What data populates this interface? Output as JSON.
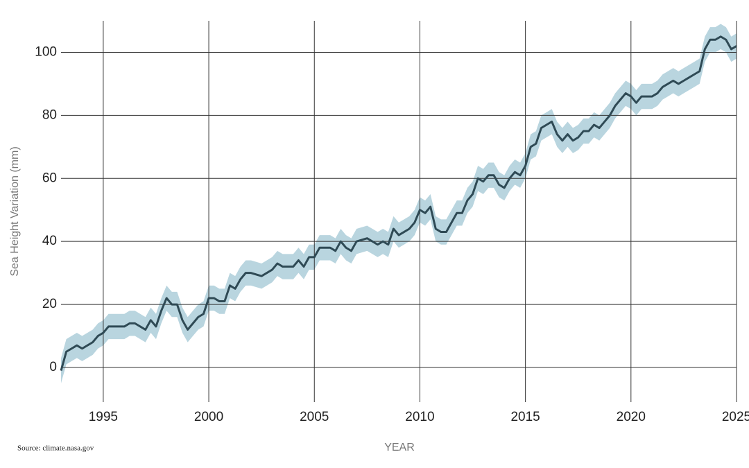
{
  "chart_data": {
    "type": "line",
    "y_label": "Sea Height Variation (mm)",
    "x_label": "YEAR",
    "source": "Source: climate.nasa.gov",
    "x": [
      1993.0,
      1993.25,
      1993.5,
      1993.75,
      1994.0,
      1994.5,
      1994.75,
      1995.0,
      1995.25,
      1995.5,
      1996.0,
      1996.25,
      1996.5,
      1997.0,
      1997.25,
      1997.5,
      1997.75,
      1998.0,
      1998.25,
      1998.5,
      1998.75,
      1999.0,
      1999.25,
      1999.5,
      1999.75,
      2000.0,
      2000.25,
      2000.5,
      2000.75,
      2001.0,
      2001.25,
      2001.5,
      2001.75,
      2002.0,
      2002.5,
      2003.0,
      2003.25,
      2003.5,
      2004.0,
      2004.25,
      2004.5,
      2004.75,
      2005.0,
      2005.25,
      2005.5,
      2005.75,
      2006.0,
      2006.25,
      2006.5,
      2006.75,
      2007.0,
      2007.5,
      2008.0,
      2008.25,
      2008.5,
      2008.75,
      2009.0,
      2009.25,
      2009.5,
      2009.75,
      2010.0,
      2010.25,
      2010.5,
      2010.75,
      2011.0,
      2011.25,
      2011.5,
      2011.75,
      2012.0,
      2012.25,
      2012.5,
      2012.75,
      2013.0,
      2013.25,
      2013.5,
      2013.75,
      2014.0,
      2014.25,
      2014.5,
      2014.75,
      2015.0,
      2015.25,
      2015.5,
      2015.75,
      2016.0,
      2016.25,
      2016.5,
      2016.75,
      2017.0,
      2017.25,
      2017.5,
      2017.75,
      2018.0,
      2018.25,
      2018.5,
      2018.75,
      2019.0,
      2019.25,
      2019.5,
      2019.75,
      2020.0,
      2020.25,
      2020.5,
      2020.75,
      2021.0,
      2021.25,
      2021.5,
      2021.75,
      2022.0,
      2022.25,
      2022.5,
      2022.75,
      2023.0,
      2023.25,
      2023.5,
      2023.75,
      2024.0,
      2024.25,
      2024.5,
      2024.75,
      2025.0
    ],
    "series": [
      {
        "color": "#2f4a55",
        "band_color": "#b9d5df",
        "values": [
          -1,
          5,
          6,
          7,
          6,
          8,
          10,
          11,
          13,
          13,
          13,
          14,
          14,
          12,
          15,
          13,
          18,
          22,
          20,
          20,
          15,
          12,
          14,
          16,
          17,
          22,
          22,
          21,
          21,
          26,
          25,
          28,
          30,
          30,
          29,
          31,
          33,
          32,
          32,
          34,
          32,
          35,
          35,
          38,
          38,
          38,
          37,
          40,
          38,
          37,
          40,
          41,
          39,
          40,
          39,
          44,
          42,
          43,
          44,
          46,
          50,
          49,
          51,
          44,
          43,
          43,
          46,
          49,
          49,
          53,
          55,
          60,
          59,
          61,
          61,
          58,
          57,
          60,
          62,
          61,
          64,
          70,
          71,
          76,
          77,
          78,
          74,
          72,
          74,
          72,
          73,
          75,
          75,
          77,
          76,
          78,
          80,
          83,
          85,
          87,
          86,
          84,
          86,
          86,
          86,
          87,
          89,
          90,
          91,
          90,
          91,
          92,
          93,
          94,
          101,
          104,
          104,
          105,
          104,
          101,
          102
        ],
        "error": [
          4,
          4,
          4,
          4,
          4,
          4,
          4,
          4,
          4,
          4,
          4,
          4,
          4,
          4,
          4,
          4,
          4,
          4,
          4,
          4,
          4,
          4,
          4,
          4,
          4,
          4,
          4,
          4,
          4,
          4,
          4,
          4,
          4,
          4,
          4,
          4,
          4,
          4,
          4,
          4,
          4,
          4,
          4,
          4,
          4,
          4,
          4,
          4,
          4,
          4,
          4,
          4,
          4,
          4,
          4,
          4,
          4,
          4,
          4,
          4,
          4,
          4,
          4,
          4,
          4,
          4,
          4,
          4,
          4,
          4,
          4,
          4,
          4,
          4,
          4,
          4,
          4,
          4,
          4,
          4,
          4,
          4,
          4,
          4,
          4,
          4,
          4,
          4,
          4,
          4,
          4,
          4,
          4,
          4,
          4,
          4,
          4,
          4,
          4,
          4,
          4,
          4,
          4,
          4,
          4,
          4,
          4,
          4,
          4,
          4,
          4,
          4,
          4,
          4,
          4,
          4,
          4,
          4,
          4,
          4,
          4
        ]
      }
    ],
    "xlim": [
      1993,
      2025
    ],
    "ylim": [
      -11,
      110
    ],
    "xticks": [
      1995,
      2000,
      2005,
      2010,
      2015,
      2020,
      2025
    ],
    "yticks": [
      0,
      20,
      40,
      60,
      80,
      100
    ],
    "grid": true
  }
}
